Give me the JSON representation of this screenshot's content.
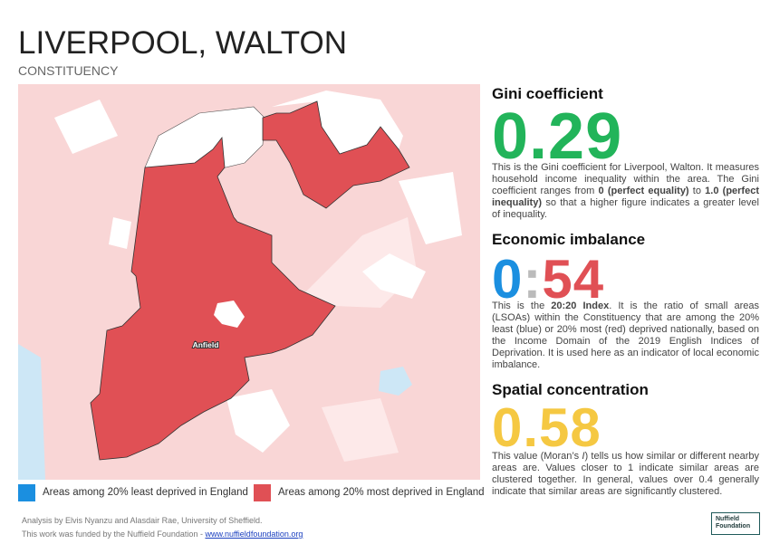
{
  "header": {
    "title": "LIVERPOOL, WALTON",
    "subtitle": "CONSTITUENCY"
  },
  "map": {
    "label": "Anfield"
  },
  "legend": [
    "Areas among 20% least deprived in England",
    "Areas among 20% most deprived in England"
  ],
  "panels": [
    {
      "heading": "Gini coefficient",
      "value": [
        "0.29"
      ],
      "text": [
        "This is the Gini coefficient for Liverpool, Walton. It measures household income inequality within the area. The Gini coefficient ranges from ",
        "0 (perfect equality)",
        " to ",
        "1.0 (perfect inequality)",
        " so that a higher figure indicates a greater level of inequality."
      ]
    },
    {
      "heading": "Economic imbalance",
      "value": [
        "0",
        ":",
        "54"
      ],
      "text": [
        "This is the ",
        "20:20 Index",
        ". It is the ratio of small areas (LSOAs) within the Constituency that are among the 20% least (blue) or 20% most (red) deprived nationally, based on the Income Domain of the 2019 English Indices of Deprivation. It is used here as an indicator of local economic imbalance."
      ]
    },
    {
      "heading": "Spatial concentration",
      "value": [
        "0.58"
      ],
      "text": [
        "This value (Moran’s ",
        "I",
        ") tells us how similar or different nearby areas are. Values closer to 1 indicate similar areas are clustered together. In general, values over 0.4 generally indicate that similar areas are significantly clustered."
      ]
    }
  ],
  "footer": {
    "credit": "Analysis by Elvis Nyanzu and Alasdair Rae, University of Sheffield.",
    "funding": "This work was funded by the Nuffield Foundation - ",
    "link": "www.nuffieldfoundation.org",
    "logo": [
      "Nuffield",
      "Foundation"
    ]
  }
}
